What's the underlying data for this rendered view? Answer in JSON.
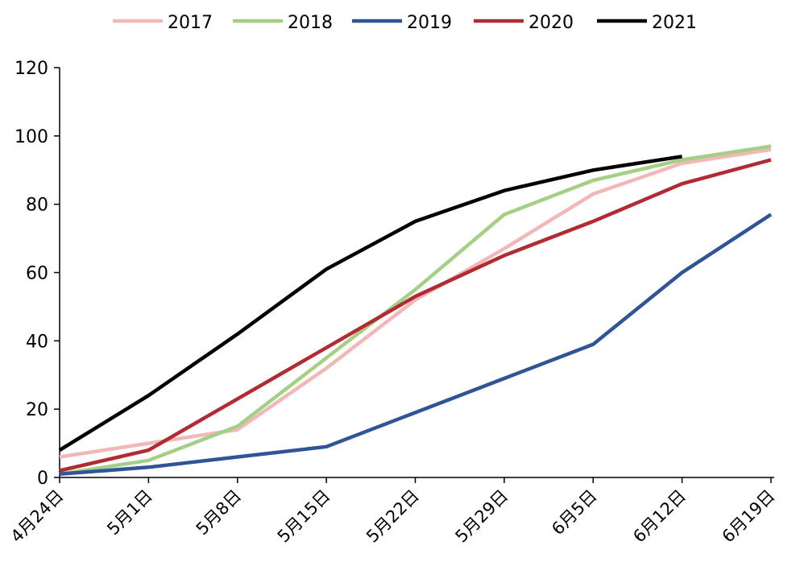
{
  "chart_data": {
    "type": "line",
    "categories": [
      "4月24日",
      "5月1日",
      "5月8日",
      "5月15日",
      "5月22日",
      "5月29日",
      "6月5日",
      "6月12日",
      "6月19日"
    ],
    "ylim": [
      0,
      120
    ],
    "yticks": [
      0,
      20,
      40,
      60,
      80,
      100,
      120
    ],
    "grid": false,
    "legend": "top",
    "series": [
      {
        "name": "2017",
        "color": "#f2b8b8",
        "values": [
          6,
          10,
          14,
          32,
          52,
          67,
          83,
          92,
          96
        ]
      },
      {
        "name": "2018",
        "color": "#a6cf86",
        "values": [
          1,
          5,
          15,
          35,
          55,
          77,
          87,
          93,
          97
        ]
      },
      {
        "name": "2019",
        "color": "#2f5597",
        "values": [
          1,
          3,
          6,
          9,
          19,
          29,
          39,
          60,
          77
        ]
      },
      {
        "name": "2020",
        "color": "#b22a32",
        "values": [
          2,
          8,
          23,
          38,
          53,
          65,
          75,
          86,
          93
        ]
      },
      {
        "name": "2021",
        "color": "#000000",
        "values": [
          8,
          24,
          42,
          61,
          75,
          84,
          90,
          94,
          null
        ]
      }
    ]
  }
}
